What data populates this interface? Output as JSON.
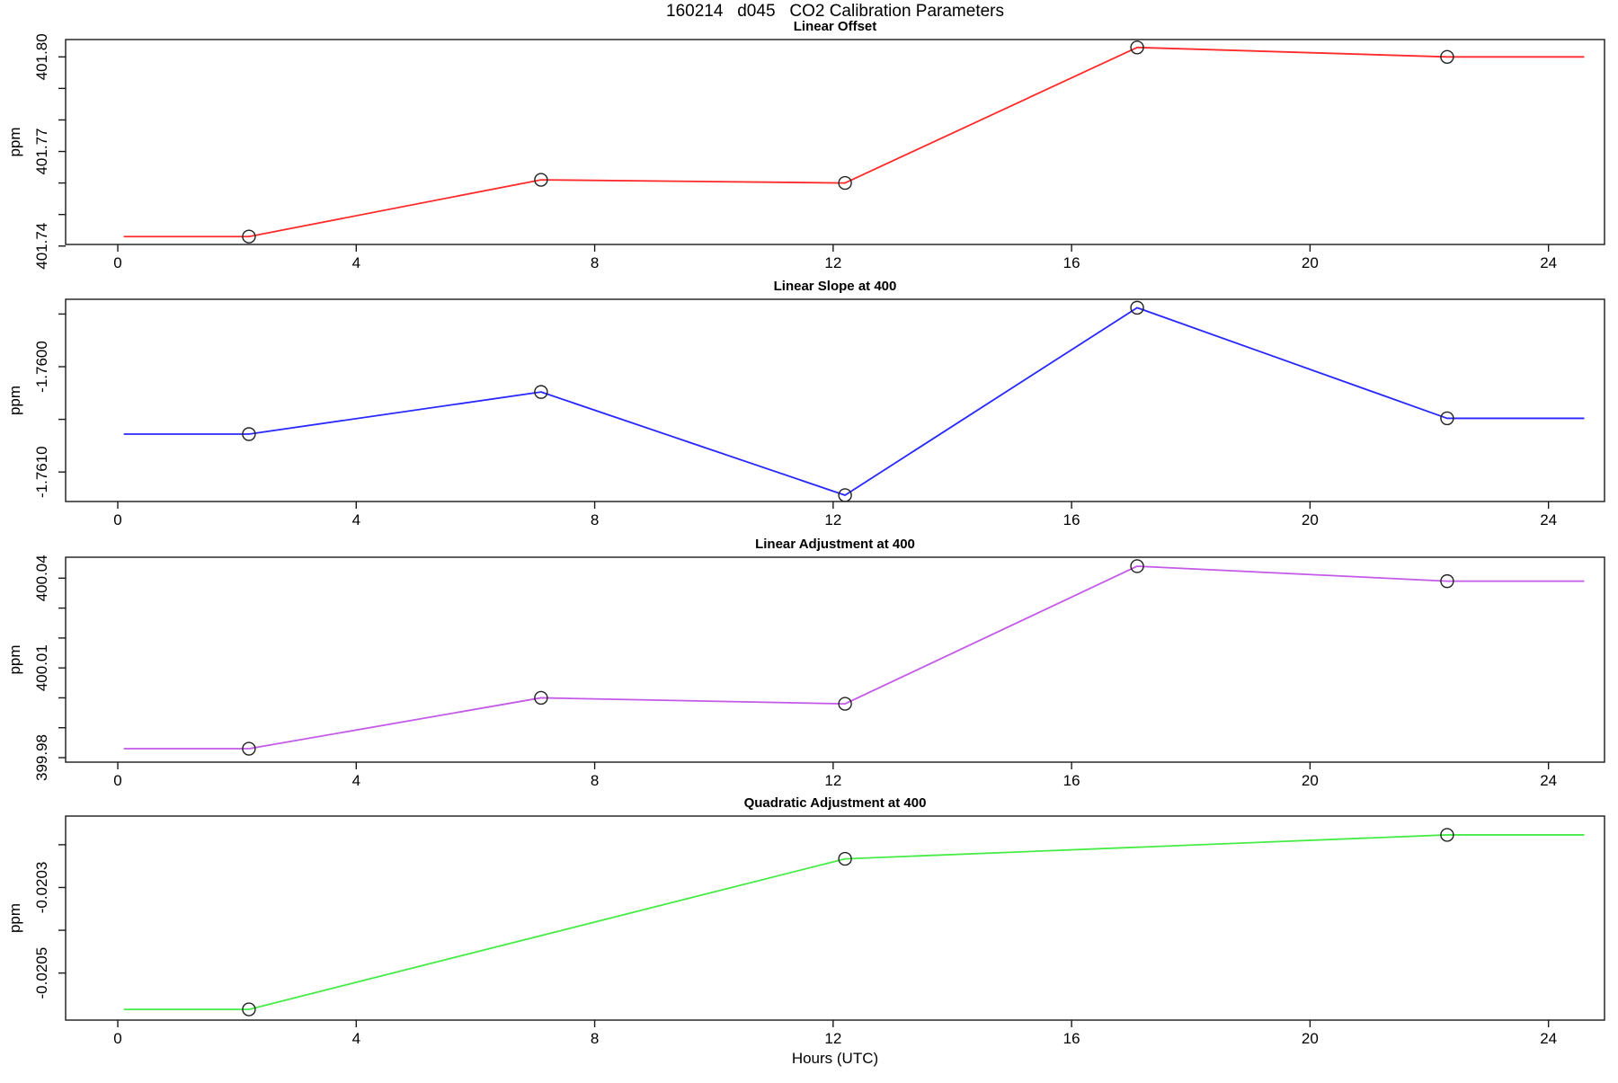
{
  "figure": {
    "title": "160214   d045   CO2 Calibration Parameters",
    "xlabel": "Hours (UTC)",
    "background": "#ffffff",
    "axis_color": "#1a1a1a",
    "marker_color": "#222222",
    "x_ticks": [
      0,
      4,
      8,
      12,
      16,
      20,
      24
    ],
    "xlim": [
      -0.875,
      24.94
    ],
    "grid": false,
    "legend": "none"
  },
  "chart_data": [
    {
      "type": "line",
      "title": "Linear Offset",
      "ylabel": "ppm",
      "color": "#ff2a2a",
      "x": [
        0.1,
        2.2,
        7.1,
        12.2,
        17.1,
        22.3,
        24.6
      ],
      "y": [
        401.743,
        401.743,
        401.761,
        401.76,
        401.803,
        401.8,
        401.8
      ],
      "marker_x": [
        2.2,
        7.1,
        12.2,
        17.1,
        22.3
      ],
      "ylim": [
        401.7405,
        401.8055
      ],
      "yticks": [
        401.74,
        401.75,
        401.76,
        401.77,
        401.78,
        401.79,
        401.8
      ],
      "ytick_labels": [
        "401.74",
        "",
        "",
        "401.77",
        "",
        "",
        "401.80"
      ]
    },
    {
      "type": "line",
      "title": "Linear Slope at 400",
      "ylabel": "ppm",
      "color": "#2828ff",
      "x": [
        0.1,
        2.2,
        7.1,
        12.2,
        17.1,
        22.3,
        24.6
      ],
      "y": [
        -1.76064,
        -1.76064,
        -1.76024,
        -1.76122,
        -1.75944,
        -1.76049,
        -1.76049
      ],
      "marker_x": [
        2.2,
        7.1,
        12.2,
        17.1,
        22.3
      ],
      "ylim": [
        -1.76128,
        -1.75936
      ],
      "yticks": [
        -1.761,
        -1.7605,
        -1.76,
        -1.7595
      ],
      "ytick_labels": [
        "-1.7610",
        "",
        "-1.7600",
        ""
      ]
    },
    {
      "type": "line",
      "title": "Linear Adjustment at 400",
      "ylabel": "ppm",
      "color": "#c45ae8",
      "x": [
        0.1,
        2.2,
        7.1,
        12.2,
        17.1,
        22.3,
        24.6
      ],
      "y": [
        399.983,
        399.983,
        400.0,
        399.998,
        400.044,
        400.039,
        400.039
      ],
      "marker_x": [
        2.2,
        7.1,
        12.2,
        17.1,
        22.3
      ],
      "ylim": [
        399.9785,
        400.047
      ],
      "yticks": [
        399.98,
        399.99,
        400.0,
        400.01,
        400.02,
        400.03,
        400.04
      ],
      "ytick_labels": [
        "399.98",
        "",
        "",
        "400.01",
        "",
        "",
        "400.04"
      ]
    },
    {
      "type": "line",
      "title": "Quadratic Adjustment at 400",
      "ylabel": "ppm",
      "color": "#46ec46",
      "x": [
        0.1,
        2.2,
        12.2,
        22.3,
        24.6
      ],
      "y": [
        -0.020585,
        -0.020585,
        -0.020233,
        -0.020177,
        -0.020177
      ],
      "marker_x": [
        2.2,
        12.2,
        22.3
      ],
      "ylim": [
        -0.02061,
        -0.020133
      ],
      "yticks": [
        -0.0205,
        -0.0204,
        -0.0203,
        -0.0202
      ],
      "ytick_labels": [
        "-0.0205",
        "",
        "-0.0203",
        ""
      ]
    }
  ]
}
